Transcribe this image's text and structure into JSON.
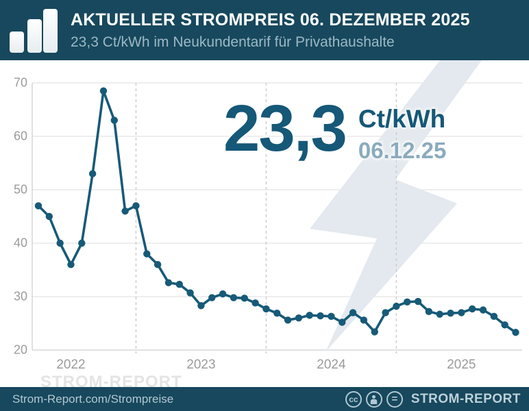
{
  "header": {
    "title": "AKTUELLER STROMPREIS 06. DEZEMBER 2025",
    "subtitle": "23,3 Ct/kWh im Neukundentarif für Privathaushalte"
  },
  "highlight": {
    "value": "23,3",
    "unit": "Ct/kWh",
    "date": "06.12.25"
  },
  "watermark": "STROM-REPORT",
  "footer": {
    "site": "Strom-Report.com/Strompreise",
    "brand": "STROM-REPORT",
    "license_icons": [
      "cc-icon",
      "attribution-person-icon",
      "equal-icon"
    ],
    "cc_label": "cc",
    "equal_label": "="
  },
  "colors": {
    "navy": "#17485d",
    "line": "#175a78",
    "big_number": "#155877",
    "date_text": "#8aabbd",
    "subtitle_text": "#9db8c5",
    "axis_label": "#9b9b9b",
    "gridline": "#e3e3e3",
    "axis_line": "#cfcfcf",
    "dashed_line": "#cdcdcd",
    "bolt": "#e3e9ee",
    "watermark_text": "#e4e4e4"
  },
  "chart_data": {
    "type": "line",
    "title": "Aktueller Strompreis 06. Dezember 2025",
    "ylabel": "Ct/kWh",
    "ylim": [
      20,
      70
    ],
    "yticks": [
      20,
      30,
      40,
      50,
      60,
      70
    ],
    "xtick_years": [
      "2022",
      "2023",
      "2024",
      "2025"
    ],
    "grid": "horizontal solid lines; dashed vertical lines at year boundaries",
    "legend_position": "none",
    "series": [
      {
        "name": "Strompreis Neukundentarif Privathaushalte (Ct/kWh)",
        "x": [
          "2022-04",
          "2022-05",
          "2022-06",
          "2022-07",
          "2022-08",
          "2022-09",
          "2022-10",
          "2022-11",
          "2022-12",
          "2023-01",
          "2023-02",
          "2023-03",
          "2023-04",
          "2023-05",
          "2023-06",
          "2023-07",
          "2023-08",
          "2023-09",
          "2023-10",
          "2023-11",
          "2023-12",
          "2024-01",
          "2024-02",
          "2024-03",
          "2024-04",
          "2024-05",
          "2024-06",
          "2024-07",
          "2024-08",
          "2024-09",
          "2024-10",
          "2024-11",
          "2024-12",
          "2025-01",
          "2025-02",
          "2025-03",
          "2025-04",
          "2025-05",
          "2025-06",
          "2025-07",
          "2025-08",
          "2025-09",
          "2025-10",
          "2025-11",
          "2025-12"
        ],
        "values": [
          47,
          45,
          40,
          36,
          40,
          53,
          68.5,
          63,
          46,
          47,
          38,
          36,
          32.6,
          32.3,
          30.7,
          28.3,
          29.8,
          30.5,
          29.8,
          29.7,
          28.8,
          27.7,
          26.9,
          25.6,
          26.0,
          26.5,
          26.4,
          26.3,
          25.2,
          27.0,
          25.6,
          23.4,
          27.0,
          28.2,
          29.0,
          29.1,
          27.2,
          26.7,
          26.9,
          27.0,
          27.7,
          27.5,
          26.3,
          24.7,
          23.3
        ]
      }
    ]
  }
}
